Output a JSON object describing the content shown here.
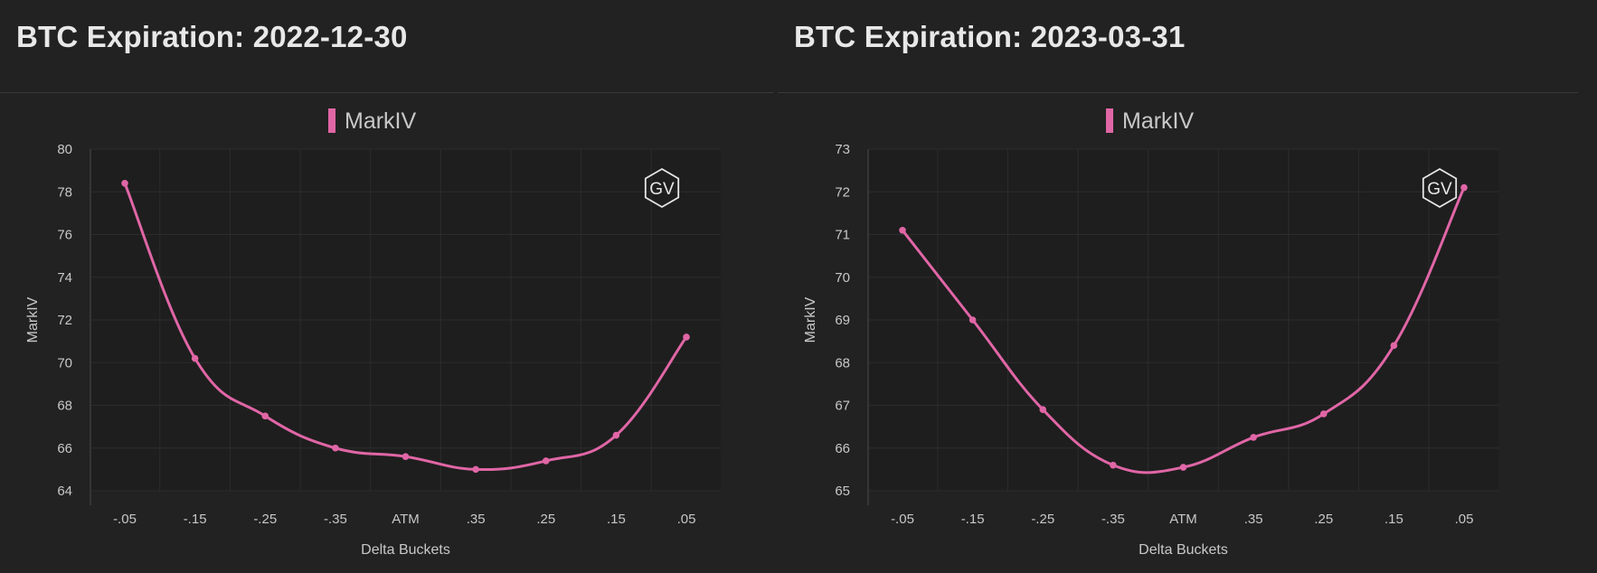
{
  "charts": [
    {
      "title": "BTC Expiration: 2022-12-30",
      "logo": "GV",
      "logo_icon": "gv-hexagon-icon",
      "chart_data": {
        "type": "line",
        "categories": [
          "-.05",
          "-.15",
          "-.25",
          "-.35",
          "ATM",
          ".35",
          ".25",
          ".15",
          ".05"
        ],
        "series": [
          {
            "name": "MarkIV",
            "color": "#e066a6",
            "values": [
              78.4,
              70.2,
              67.5,
              66.0,
              65.6,
              65.0,
              65.4,
              66.6,
              71.2
            ]
          }
        ],
        "xlabel": "Delta Buckets",
        "ylabel": "MarkIV",
        "ylim": [
          64,
          80
        ],
        "yticks": [
          "64",
          "66",
          "68",
          "70",
          "72",
          "74",
          "76",
          "78",
          "80"
        ],
        "grid": true,
        "legend": "top-center"
      }
    },
    {
      "title": "BTC Expiration: 2023-03-31",
      "logo": "GV",
      "logo_icon": "gv-hexagon-icon",
      "chart_data": {
        "type": "line",
        "categories": [
          "-.05",
          "-.15",
          "-.25",
          "-.35",
          "ATM",
          ".35",
          ".25",
          ".15",
          ".05"
        ],
        "series": [
          {
            "name": "MarkIV",
            "color": "#e066a6",
            "values": [
              71.1,
              69.0,
              66.9,
              65.6,
              65.55,
              66.25,
              66.8,
              68.4,
              72.1
            ]
          }
        ],
        "xlabel": "Delta Buckets",
        "ylabel": "MarkIV",
        "ylim": [
          65,
          73
        ],
        "yticks": [
          "65",
          "66",
          "67",
          "68",
          "69",
          "70",
          "71",
          "72",
          "73"
        ],
        "grid": true,
        "legend": "top-center"
      }
    }
  ]
}
